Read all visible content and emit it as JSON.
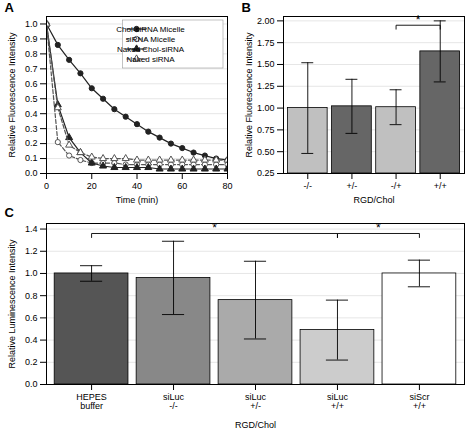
{
  "chart_data": [
    {
      "type": "line",
      "title": "A",
      "xlabel": "Time (min)",
      "ylabel": "Relative Fluorescence Intensity",
      "xlim": [
        0,
        80
      ],
      "xticks": [
        0,
        20,
        40,
        60,
        80
      ],
      "ylim": [
        0,
        1.05
      ],
      "yticks": [
        {
          "value": 0,
          "label": "0.0"
        },
        0.1,
        0.2,
        0.3,
        0.4,
        0.5,
        0.6,
        0.7,
        0.8,
        0.9,
        {
          "value": 1,
          "label": "1.0"
        }
      ],
      "grid": "y",
      "legend": "top-right",
      "x": [
        0,
        5,
        10,
        15,
        20,
        25,
        30,
        35,
        40,
        45,
        50,
        55,
        60,
        65,
        70,
        75,
        80
      ],
      "series": [
        {
          "name": "Chol-siRNA Micelle",
          "color": "#222222",
          "marker": "circle",
          "line_style": "solid",
          "values": [
            1.0,
            0.86,
            0.76,
            0.67,
            0.57,
            0.5,
            0.43,
            0.38,
            0.33,
            0.28,
            0.24,
            0.2,
            0.17,
            0.14,
            0.12,
            0.1,
            0.09
          ]
        },
        {
          "name": "siRNA Micelle",
          "color": "#555555",
          "marker": "open-circle",
          "line_style": "dashed",
          "values": [
            1.0,
            0.21,
            0.12,
            0.09,
            0.07,
            0.07,
            0.07,
            0.06,
            0.06,
            0.06,
            0.06,
            0.06,
            0.06,
            0.06,
            0.06,
            0.06,
            0.06
          ]
        },
        {
          "name": "Naked Chol-siRNA",
          "color": "#222222",
          "marker": "triangle",
          "line_style": "solid",
          "values": [
            1.0,
            0.46,
            0.24,
            0.14,
            0.07,
            0.05,
            0.04,
            0.04,
            0.04,
            0.04,
            0.03,
            0.03,
            0.03,
            0.03,
            0.03,
            0.03,
            0.03
          ]
        },
        {
          "name": "Naked siRNA",
          "color": "#555555",
          "marker": "open-triangle",
          "line_style": "dashed",
          "values": [
            1.0,
            0.44,
            0.19,
            0.14,
            0.11,
            0.1,
            0.1,
            0.1,
            0.09,
            0.09,
            0.09,
            0.09,
            0.09,
            0.09,
            0.09,
            0.09,
            0.09
          ]
        }
      ]
    },
    {
      "type": "bar",
      "title": "B",
      "xlabel": "RGD/Chol",
      "ylabel": "Relative Fluorescence Intensity",
      "categories": [
        "-/-",
        "+/-",
        "-/+",
        "+/+"
      ],
      "values": [
        1.0,
        1.02,
        1.01,
        1.65
      ],
      "errors": [
        0.52,
        0.31,
        0.2,
        0.35
      ],
      "colors": [
        "#c0c0c0",
        "#666666",
        "#c0c0c0",
        "#666666"
      ],
      "ylim": [
        0.25,
        2.05
      ],
      "yticks": [
        0.25,
        {
          "value": 0.5,
          "label": "0.50"
        },
        0.75,
        {
          "value": 1,
          "label": "1.00"
        },
        1.25,
        {
          "value": 1.5,
          "label": "1.50"
        },
        1.75,
        {
          "value": 2,
          "label": "2.00"
        }
      ],
      "grid": "y",
      "annotations": [
        {
          "text": "*",
          "from": "-/+",
          "to": "+/+",
          "y": 1.95
        }
      ]
    },
    {
      "type": "bar",
      "title": "C",
      "xlabel": "RGD/Chol",
      "ylabel": "Relative Luminescence Intensity",
      "categories": [
        "HEPES\nbuffer",
        "siLuc\n-/-",
        "siLuc\n+/-",
        "siLuc\n+/+",
        "siScr\n+/+"
      ],
      "values": [
        1.0,
        0.96,
        0.76,
        0.49,
        1.0
      ],
      "errors": [
        0.07,
        0.33,
        0.35,
        0.27,
        0.12
      ],
      "colors": [
        "#555555",
        "#888888",
        "#aaaaaa",
        "#cccccc",
        "#ffffff"
      ],
      "ylim": [
        0,
        1.45
      ],
      "yticks": [
        {
          "value": 0,
          "label": "0.0"
        },
        0.2,
        0.4,
        0.6,
        0.8,
        {
          "value": 1,
          "label": "1.0"
        },
        1.2,
        1.4
      ],
      "grid": "y",
      "annotations": [
        {
          "text": "*",
          "from": "HEPES\nbuffer",
          "to": "siLuc\n+/+",
          "y": 1.36
        },
        {
          "text": "*",
          "from": "siLuc\n+/+",
          "to": "siScr\n+/+",
          "y": 1.36
        }
      ]
    }
  ]
}
